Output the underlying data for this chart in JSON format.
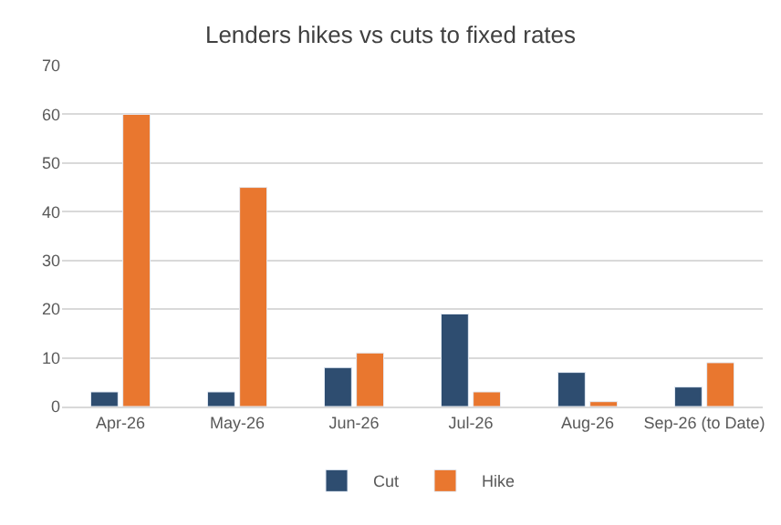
{
  "chart_data": {
    "type": "bar",
    "title": "Lenders hikes vs cuts to fixed rates",
    "categories": [
      "Apr-26",
      "May-26",
      "Jun-26",
      "Jul-26",
      "Aug-26",
      "Sep-26 (to Date)"
    ],
    "series": [
      {
        "name": "Cut",
        "color": "#2e4d70",
        "values": [
          3,
          3,
          8,
          19,
          7,
          4
        ]
      },
      {
        "name": "Hike",
        "color": "#e9772f",
        "values": [
          60,
          45,
          11,
          3,
          1,
          9
        ]
      }
    ],
    "ylim": [
      0,
      70
    ],
    "yticks": [
      0,
      10,
      20,
      30,
      40,
      50,
      60,
      70
    ],
    "grid": "y",
    "legend": "bottom"
  }
}
